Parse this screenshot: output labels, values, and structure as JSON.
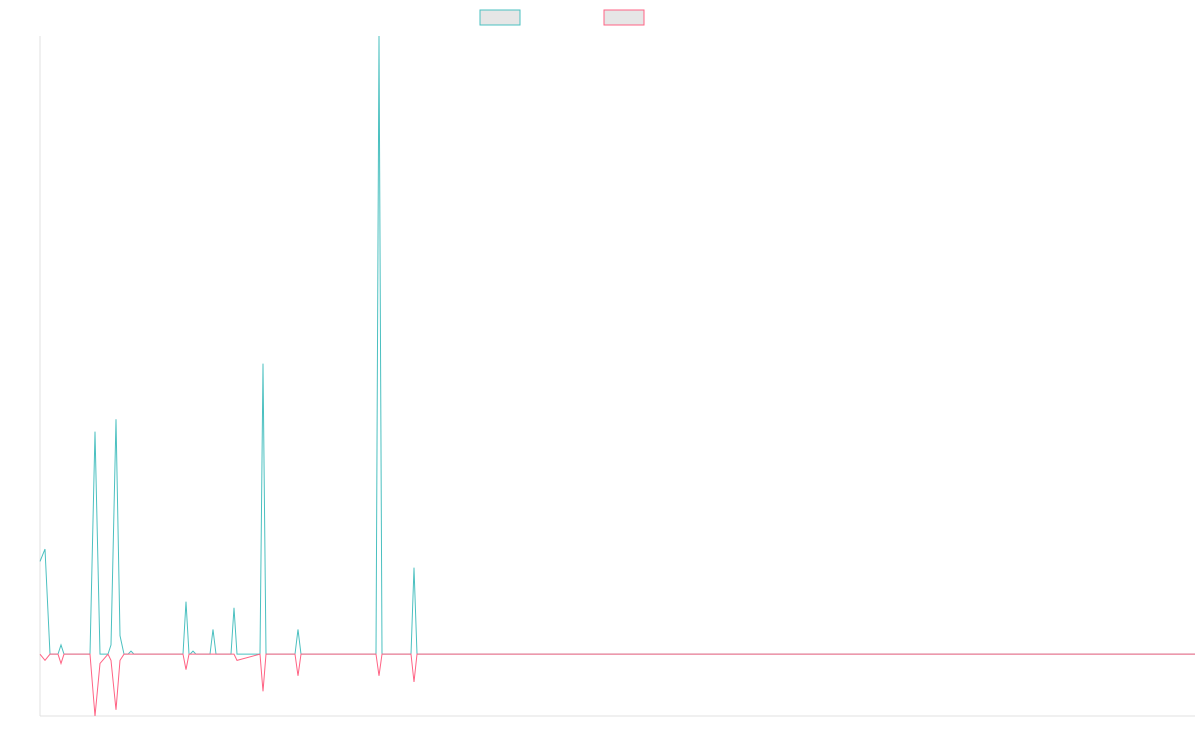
{
  "chart_data": {
    "type": "line",
    "x": [
      0,
      5,
      10,
      18,
      21,
      24,
      50,
      55,
      60,
      68,
      71,
      76,
      80,
      84,
      88,
      91,
      94,
      143,
      146,
      149,
      150,
      153,
      156,
      170,
      173,
      176,
      191,
      194,
      197,
      220,
      223,
      226,
      255,
      258,
      261,
      336,
      339,
      342,
      371,
      374,
      377,
      1155
    ],
    "series": [
      {
        "color": "#4bc0c0",
        "values": [
          15,
          17,
          0,
          0,
          1.5,
          0,
          0,
          36,
          0,
          0,
          1.5,
          38,
          3,
          0,
          0,
          0.5,
          0,
          0,
          8.5,
          0,
          0,
          0.5,
          0,
          0,
          4,
          0,
          0,
          7.5,
          0,
          0,
          47,
          0,
          0,
          4,
          0,
          0,
          100,
          0,
          0,
          14,
          0,
          0
        ]
      },
      {
        "color": "#ff6384",
        "values": [
          0,
          -1,
          0,
          0,
          -1.5,
          0,
          0,
          -10,
          -1.5,
          0,
          -1,
          -9,
          -1,
          0,
          0,
          0,
          0,
          0,
          -2.5,
          0,
          0,
          0,
          0,
          0,
          0,
          0,
          0,
          0,
          -1,
          0,
          -6,
          0,
          0,
          -3.5,
          0,
          0,
          -3.5,
          0,
          0,
          -4.5,
          0,
          0
        ]
      }
    ],
    "xlim": [
      0,
      1155
    ],
    "ylim": [
      -10,
      100
    ]
  }
}
